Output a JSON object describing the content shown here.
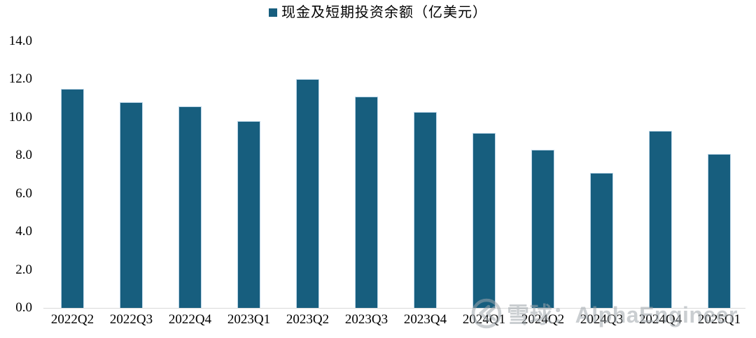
{
  "chart_data": {
    "type": "bar",
    "title": "",
    "legend_label": "现金及短期投资余额（亿美元）",
    "legend_position": "top-center",
    "categories": [
      "2022Q2",
      "2022Q3",
      "2022Q4",
      "2023Q1",
      "2023Q2",
      "2023Q3",
      "2023Q4",
      "2024Q1",
      "2024Q2",
      "2024Q3",
      "2024Q4",
      "2025Q1"
    ],
    "values": [
      11.5,
      10.8,
      10.6,
      9.8,
      12.0,
      11.1,
      10.3,
      9.2,
      8.3,
      7.1,
      9.3,
      8.1
    ],
    "xlabel": "",
    "ylabel": "",
    "ylim": [
      0,
      14
    ],
    "ytick_labels": [
      "0.0",
      "2.0",
      "4.0",
      "6.0",
      "8.0",
      "10.0",
      "12.0",
      "14.0"
    ],
    "grid": false,
    "bar_color": "#175e7e",
    "bar_border_color": "#bcd6e8",
    "axis_line_color": "#d9d9d9"
  },
  "watermark": {
    "logo_icon": "xueqiu-logo",
    "text": "雪球：AlphaEngineer"
  }
}
